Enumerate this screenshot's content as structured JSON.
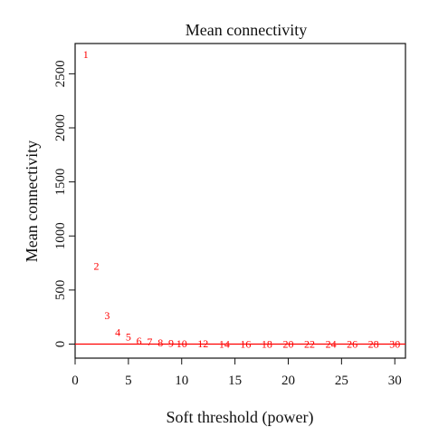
{
  "chart_data": {
    "type": "scatter",
    "title": "Mean connectivity",
    "xlabel": "Soft threshold (power)",
    "ylabel": "Mean connectivity",
    "xlim": [
      0,
      31
    ],
    "ylim": [
      -130,
      2780
    ],
    "xticks": [
      0,
      5,
      10,
      15,
      20,
      25,
      30
    ],
    "yticks": [
      0,
      500,
      1000,
      1500,
      2000,
      2500
    ],
    "grid": false,
    "point_color": "#ff0000",
    "hline": {
      "y": 0,
      "color": "#ff0000"
    },
    "points": [
      {
        "label": "1",
        "x": 1,
        "y": 2680
      },
      {
        "label": "2",
        "x": 2,
        "y": 720
      },
      {
        "label": "3",
        "x": 3,
        "y": 265
      },
      {
        "label": "4",
        "x": 4,
        "y": 110
      },
      {
        "label": "5",
        "x": 5,
        "y": 65
      },
      {
        "label": "6",
        "x": 6,
        "y": 30
      },
      {
        "label": "7",
        "x": 7,
        "y": 20
      },
      {
        "label": "8",
        "x": 8,
        "y": 12
      },
      {
        "label": "9",
        "x": 9,
        "y": 8
      },
      {
        "label": "10",
        "x": 10,
        "y": 6
      },
      {
        "label": "12",
        "x": 12,
        "y": 3
      },
      {
        "label": "14",
        "x": 14,
        "y": 2
      },
      {
        "label": "16",
        "x": 16,
        "y": 1
      },
      {
        "label": "18",
        "x": 18,
        "y": 1
      },
      {
        "label": "20",
        "x": 20,
        "y": 0
      },
      {
        "label": "22",
        "x": 22,
        "y": 0
      },
      {
        "label": "24",
        "x": 24,
        "y": 0
      },
      {
        "label": "26",
        "x": 26,
        "y": 0
      },
      {
        "label": "28",
        "x": 28,
        "y": 0
      },
      {
        "label": "30",
        "x": 30,
        "y": 0
      }
    ]
  }
}
